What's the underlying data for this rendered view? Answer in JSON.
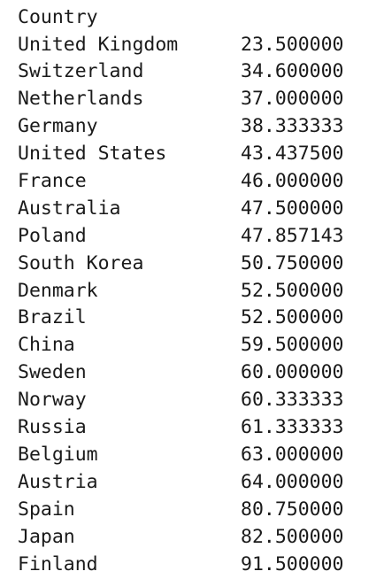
{
  "output": {
    "index_name": "Country",
    "rows": [
      {
        "country": "United Kingdom",
        "value": "23.500000"
      },
      {
        "country": "Switzerland",
        "value": "34.600000"
      },
      {
        "country": "Netherlands",
        "value": "37.000000"
      },
      {
        "country": "Germany",
        "value": "38.333333"
      },
      {
        "country": "United States",
        "value": "43.437500"
      },
      {
        "country": "France",
        "value": "46.000000"
      },
      {
        "country": "Australia",
        "value": "47.500000"
      },
      {
        "country": "Poland",
        "value": "47.857143"
      },
      {
        "country": "South Korea",
        "value": "50.750000"
      },
      {
        "country": "Denmark",
        "value": "52.500000"
      },
      {
        "country": "Brazil",
        "value": "52.500000"
      },
      {
        "country": "China",
        "value": "59.500000"
      },
      {
        "country": "Sweden",
        "value": "60.000000"
      },
      {
        "country": "Norway",
        "value": "60.333333"
      },
      {
        "country": "Russia",
        "value": "61.333333"
      },
      {
        "country": "Belgium",
        "value": "63.000000"
      },
      {
        "country": "Austria",
        "value": "64.000000"
      },
      {
        "country": "Spain",
        "value": "80.750000"
      },
      {
        "country": "Japan",
        "value": "82.500000"
      },
      {
        "country": "Finland",
        "value": "91.500000"
      }
    ]
  }
}
